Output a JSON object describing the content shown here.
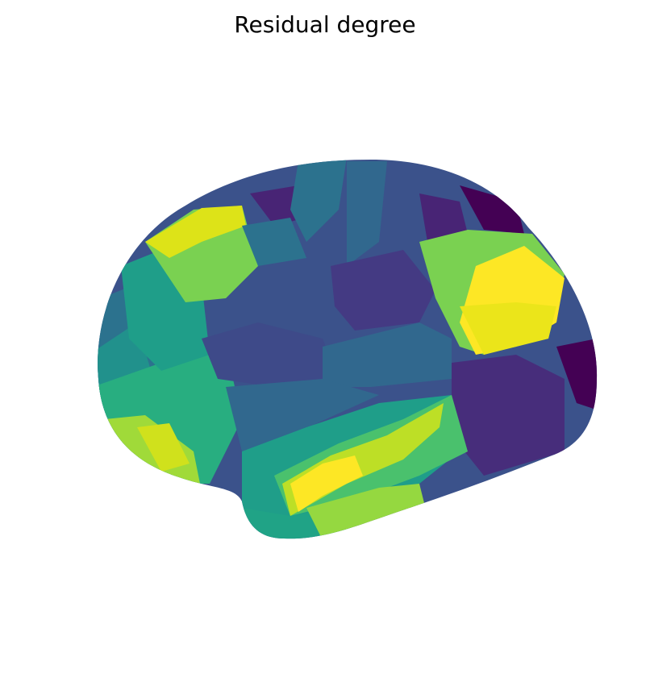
{
  "title": "Residual degree"
}
